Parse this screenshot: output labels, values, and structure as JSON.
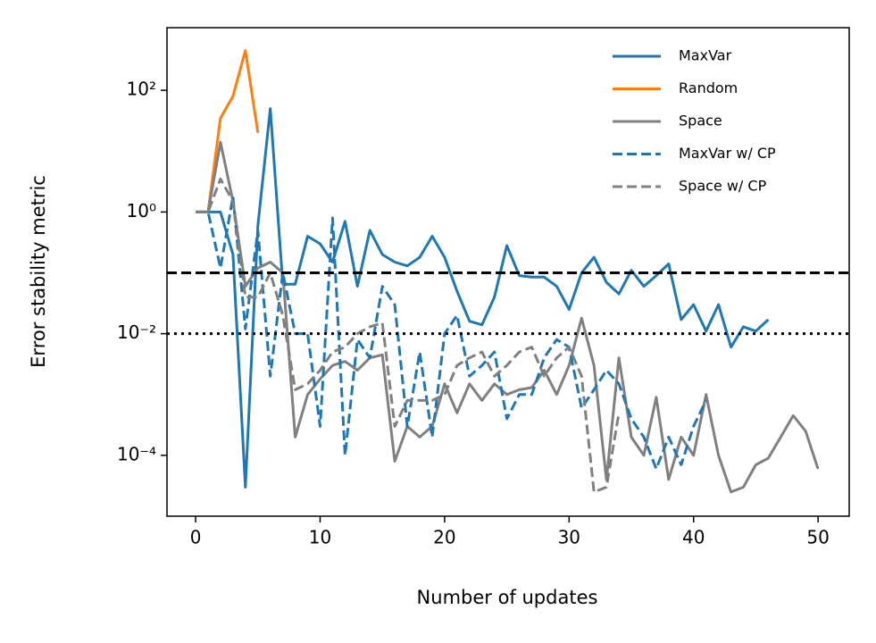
{
  "chart_data": {
    "type": "line",
    "xlabel": "Number of updates",
    "ylabel": "Error stability metric",
    "xlim": [
      -2.3,
      52.5
    ],
    "ylim": [
      1e-05,
      1070
    ],
    "yscale": "log",
    "xticks": [
      0,
      10,
      20,
      30,
      40,
      50
    ],
    "yticks": [
      {
        "value": 0.0001,
        "label": "10⁻⁴"
      },
      {
        "value": 0.01,
        "label": "10⁻²"
      },
      {
        "value": 1,
        "label": "10⁰"
      },
      {
        "value": 100,
        "label": "10²"
      }
    ],
    "legend": "upper right",
    "hlines": [
      {
        "value": 0.1,
        "color": "#000000",
        "style": "dashed"
      },
      {
        "value": 0.01,
        "color": "#000000",
        "style": "dotted"
      }
    ],
    "series": [
      {
        "name": "MaxVar",
        "color": "#1f77b4",
        "style": "solid",
        "x": [
          0,
          1,
          2,
          3,
          4,
          5,
          6,
          7,
          8,
          9,
          10,
          11,
          12,
          13,
          14,
          15,
          16,
          17,
          18,
          19,
          20,
          21,
          22,
          23,
          24,
          25,
          26,
          27,
          28,
          29,
          30,
          31,
          32,
          33,
          34,
          35,
          36,
          37,
          38,
          39,
          40,
          41,
          42,
          43,
          44,
          45,
          46
        ],
        "values": [
          1,
          1,
          1,
          0.2,
          3e-05,
          0.6,
          50,
          0.065,
          0.065,
          0.4,
          0.3,
          0.15,
          0.7,
          0.06,
          0.5,
          0.2,
          0.15,
          0.13,
          0.18,
          0.4,
          0.18,
          0.05,
          0.016,
          0.014,
          0.04,
          0.28,
          0.09,
          0.085,
          0.085,
          0.06,
          0.025,
          0.1,
          0.18,
          0.07,
          0.045,
          0.11,
          0.06,
          0.09,
          0.14,
          0.017,
          0.03,
          0.011,
          0.03,
          0.006,
          0.013,
          0.011,
          0.017
        ]
      },
      {
        "name": "Random",
        "color": "#ff7f0e",
        "style": "solid",
        "x": [
          1,
          2,
          3,
          4,
          5
        ],
        "values": [
          1,
          35,
          80,
          450,
          20
        ]
      },
      {
        "name": "Space",
        "color": "#808080",
        "style": "solid",
        "x": [
          0,
          1,
          2,
          3,
          4,
          5,
          6,
          7,
          8,
          9,
          10,
          11,
          12,
          13,
          14,
          15,
          16,
          17,
          18,
          19,
          20,
          21,
          22,
          23,
          24,
          25,
          26,
          27,
          28,
          29,
          30,
          31,
          32,
          33,
          34,
          35,
          36,
          37,
          38,
          39,
          40,
          41,
          42,
          43,
          44,
          45,
          46,
          47,
          48,
          49,
          50
        ],
        "values": [
          1,
          1,
          14,
          1.5,
          0.06,
          0.12,
          0.15,
          0.1,
          0.0002,
          0.001,
          0.0018,
          0.003,
          0.0035,
          0.0025,
          0.004,
          0.0045,
          8e-05,
          0.0003,
          0.0002,
          0.0003,
          0.0015,
          0.0005,
          0.0015,
          0.0008,
          0.0015,
          0.001,
          0.0012,
          0.0013,
          0.0025,
          0.001,
          0.003,
          0.018,
          0.003,
          4e-05,
          0.004,
          0.0002,
          0.0001,
          0.0009,
          4e-05,
          0.0002,
          0.0001,
          0.001,
          0.0001,
          2.5e-05,
          3e-05,
          7e-05,
          9e-05,
          0.0002,
          0.00045,
          0.00025,
          6e-05
        ]
      },
      {
        "name": "MaxVar w/ CP",
        "color": "#1f77b4",
        "style": "dashed",
        "x": [
          0,
          1,
          2,
          3,
          4,
          5,
          6,
          7,
          8,
          9,
          10,
          11,
          12,
          13,
          14,
          15,
          16,
          17,
          18,
          19,
          20,
          21,
          22,
          23,
          24,
          25,
          26,
          27,
          28,
          29,
          30,
          31,
          32,
          33,
          34,
          35,
          36,
          37,
          38,
          39,
          40,
          41
        ],
        "values": [
          1,
          1,
          0.12,
          1.8,
          0.012,
          0.5,
          0.002,
          0.1,
          0.01,
          0.01,
          0.0003,
          0.8,
          0.0001,
          0.008,
          0.004,
          0.06,
          0.03,
          0.0003,
          0.005,
          0.0002,
          0.01,
          0.02,
          0.002,
          0.003,
          0.005,
          0.0004,
          0.001,
          0.001,
          0.004,
          0.008,
          0.006,
          0.0006,
          0.0012,
          0.0025,
          0.0015,
          0.0004,
          0.0002,
          6e-05,
          0.0002,
          7e-05,
          0.0003,
          0.0008
        ]
      },
      {
        "name": "Space w/ CP",
        "color": "#808080",
        "style": "dashed",
        "x": [
          0,
          1,
          2,
          3,
          4,
          5,
          6,
          7,
          8,
          9,
          10,
          11,
          12,
          13,
          14,
          15,
          16,
          17,
          18,
          19,
          20,
          21,
          22,
          23,
          24,
          25,
          26,
          27,
          28,
          29,
          30,
          31,
          32,
          33,
          34
        ],
        "values": [
          1,
          1,
          3.5,
          1.5,
          0.04,
          0.04,
          0.1,
          0.02,
          0.0012,
          0.0015,
          0.0025,
          0.005,
          0.006,
          0.01,
          0.013,
          0.015,
          0.0003,
          0.0008,
          0.0008,
          0.0008,
          0.001,
          0.003,
          0.004,
          0.005,
          0.002,
          0.003,
          0.005,
          0.006,
          0.002,
          0.004,
          0.006,
          0.002,
          2.5e-05,
          3e-05,
          0.0005
        ]
      }
    ]
  }
}
